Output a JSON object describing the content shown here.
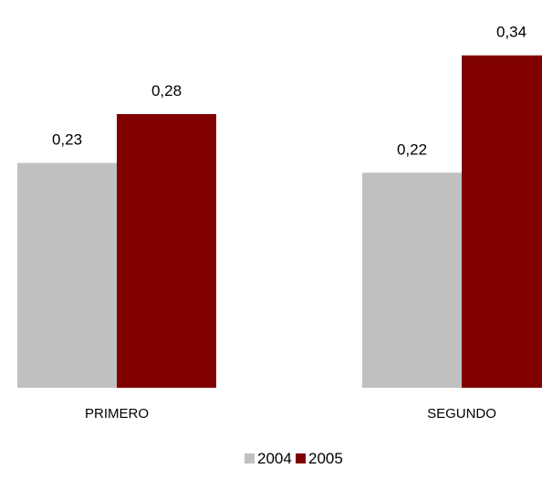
{
  "chart_data": {
    "type": "bar",
    "categories": [
      "PRIMERO",
      "SEGUNDO"
    ],
    "series": [
      {
        "name": "2004",
        "color": "#c0c0c0",
        "values": [
          0.23,
          0.22
        ],
        "labels": [
          "0,23",
          "0,22"
        ]
      },
      {
        "name": "2005",
        "color": "#800000",
        "values": [
          0.28,
          0.34
        ],
        "labels": [
          "0,28",
          "0,34"
        ]
      }
    ],
    "ylim": [
      0,
      0.35
    ],
    "grid": false,
    "legend": "bottom"
  }
}
